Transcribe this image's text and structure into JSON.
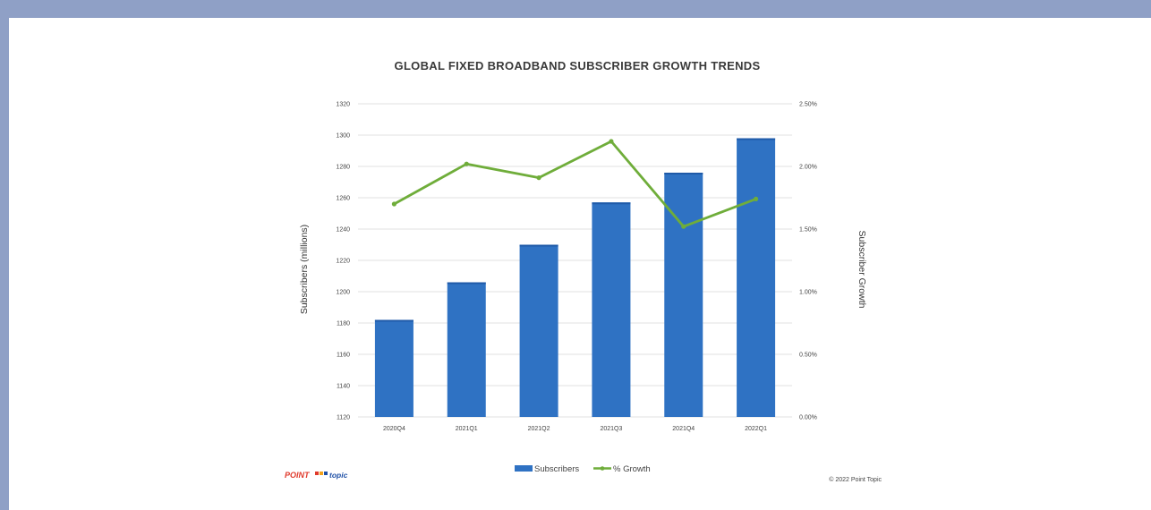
{
  "colors": {
    "frame": "#8fa0c6",
    "bar": "#2f72c3",
    "bar_top": "#1f5aa8",
    "line": "#6fad3a",
    "grid": "#d9d9d9"
  },
  "branding": {
    "logo_part1": "POINT",
    "logo_part2": "topic",
    "copyright": "© 2022 Point Topic"
  },
  "chart_data": {
    "type": "bar",
    "title": "GLOBAL FIXED BROADBAND SUBSCRIBER GROWTH TRENDS",
    "categories": [
      "2020Q4",
      "2021Q1",
      "2021Q2",
      "2021Q3",
      "2021Q4",
      "2022Q1"
    ],
    "ylabel": "Subscribers (millions)",
    "y2label": "Subscriber Growth",
    "ylim": [
      1120,
      1320
    ],
    "y2lim": [
      0,
      2.5
    ],
    "y_ticks": [
      "1120",
      "1140",
      "1160",
      "1180",
      "1200",
      "1220",
      "1240",
      "1260",
      "1280",
      "1300",
      "1320"
    ],
    "y2_ticks": [
      "0.00%",
      "0.50%",
      "1.00%",
      "1.50%",
      "2.00%",
      "2.50%"
    ],
    "series": [
      {
        "name": "Subscribers",
        "type": "bar",
        "axis": "left",
        "values": [
          1182,
          1206,
          1230,
          1257,
          1276,
          1298
        ]
      },
      {
        "name": "% Growth",
        "type": "line",
        "axis": "right",
        "values": [
          1.7,
          2.02,
          1.91,
          2.2,
          1.52,
          1.74
        ]
      }
    ],
    "legend": [
      "Subscribers",
      "% Growth"
    ],
    "legend_position": "bottom",
    "grid": true
  }
}
